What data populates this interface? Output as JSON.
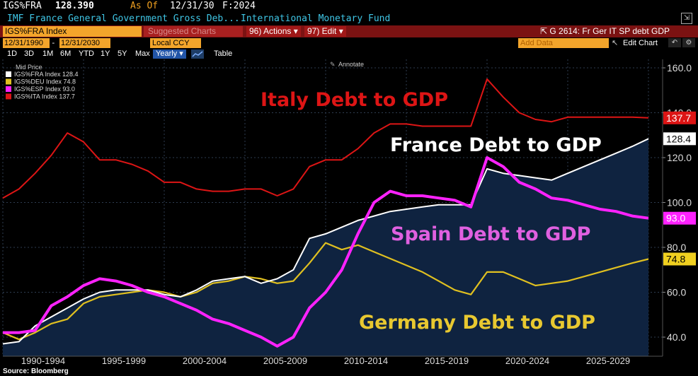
{
  "header": {
    "ticker": "IGS%FRA",
    "price": "128.390",
    "as_of_label": "As Of",
    "as_of_date": "12/31/30",
    "fiscal": "F:2024",
    "description": "IMF France General Government Gross Deb...",
    "source": "International Monetary Fund",
    "popout_icon": "popout-icon"
  },
  "toolbar": {
    "index_name": "IGS%FRA Index",
    "suggested": "Suggested Charts",
    "actions": "96) Actions ▾",
    "edit": "97) Edit ▾",
    "graph_title": "G 2614: Fr Ger IT SP debt GDP",
    "start_date": "12/31/1990",
    "end_date": "12/31/2030",
    "currency": "Local CCY",
    "add_data": "Add Data",
    "edit_chart": "Edit Chart",
    "ranges": [
      "1D",
      "3D",
      "1M",
      "6M",
      "YTD",
      "1Y",
      "5Y",
      "Max"
    ],
    "period": "Yearly ▾",
    "table": "Table",
    "annotate": "Annotate"
  },
  "colors": {
    "france": "#ffffff",
    "germany": "#e0c020",
    "spain": "#ff22ff",
    "italy": "#dd1515",
    "area": "#0f2340",
    "grid": "#2e3c50"
  },
  "legend": {
    "title": "Mid Price",
    "entries": [
      {
        "label": "IGS%FRA Index 128.4",
        "color": "#ffffff"
      },
      {
        "label": "IGS%DEU Index 74.8",
        "color": "#e0c020"
      },
      {
        "label": "IGS%ESP Index 93.0",
        "color": "#ff22ff"
      },
      {
        "label": "IGS%ITA Index 137.7",
        "color": "#dd1515"
      }
    ]
  },
  "chart_data": {
    "type": "line",
    "title": "",
    "xlabel": "",
    "ylabel": "",
    "ylim": [
      36,
      162
    ],
    "yticks": [
      40,
      60,
      80,
      100,
      120,
      140,
      160
    ],
    "ytick_labels": [
      "40.0",
      "60.0",
      "80.0",
      "100.0",
      "120.0",
      "140.0",
      "160.0"
    ],
    "x": [
      1990,
      1991,
      1992,
      1993,
      1994,
      1995,
      1996,
      1997,
      1998,
      1999,
      2000,
      2001,
      2002,
      2003,
      2004,
      2005,
      2006,
      2007,
      2008,
      2009,
      2010,
      2011,
      2012,
      2013,
      2014,
      2015,
      2016,
      2017,
      2018,
      2019,
      2020,
      2021,
      2022,
      2023,
      2024,
      2025,
      2026,
      2027,
      2028,
      2029,
      2030
    ],
    "xtick_labels": [
      "1990-1994",
      "1995-1999",
      "2000-2004",
      "2005-2009",
      "2010-2014",
      "2015-2019",
      "2020-2024",
      "2025-2029"
    ],
    "series": [
      {
        "name": "Italy",
        "label": "Italy Debt to GDP",
        "last_label": "137.7",
        "values": [
          102,
          106,
          113,
          121,
          131,
          127,
          119,
          119,
          117,
          114,
          109,
          109,
          106,
          105,
          105,
          106,
          106,
          103,
          106,
          116,
          119,
          119,
          124,
          131,
          135,
          135,
          134,
          134,
          134,
          134,
          155,
          147,
          140,
          137,
          136,
          138,
          138,
          138,
          138,
          138,
          137.7
        ]
      },
      {
        "name": "France",
        "label": "France Debt to GDP",
        "last_label": "128.4",
        "values": [
          37,
          38,
          45,
          49,
          53,
          57,
          60,
          61,
          61,
          61,
          59,
          58,
          61,
          65,
          66,
          67,
          64,
          66,
          70,
          84,
          86,
          89,
          92,
          94,
          96,
          97,
          98,
          99,
          99,
          99,
          115,
          113,
          112,
          111,
          110,
          113,
          116,
          119,
          122,
          125,
          128.4
        ]
      },
      {
        "name": "Spain",
        "label": "Spain Debt to GDP",
        "last_label": "93.0",
        "values": [
          42,
          42,
          43,
          54,
          58,
          63,
          66,
          65,
          63,
          60,
          58,
          55,
          52,
          48,
          46,
          43,
          40,
          36,
          40,
          53,
          60,
          70,
          86,
          100,
          105,
          103,
          103,
          102,
          101,
          98,
          120,
          116,
          109,
          106,
          102,
          101,
          99,
          97,
          96,
          94,
          93.0
        ]
      },
      {
        "name": "Germany",
        "label": "Germany Debt to GDP",
        "last_label": "74.8",
        "values": [
          42,
          39,
          42,
          46,
          48,
          55,
          58,
          59,
          60,
          61,
          60,
          58,
          60,
          64,
          65,
          67,
          66,
          64,
          65,
          73,
          82,
          79,
          81,
          78,
          75,
          72,
          69,
          65,
          61,
          59,
          69,
          69,
          66,
          63,
          64,
          65,
          67,
          69,
          71,
          73,
          74.8
        ]
      }
    ]
  },
  "footer": {
    "source": "Source: Bloomberg"
  }
}
